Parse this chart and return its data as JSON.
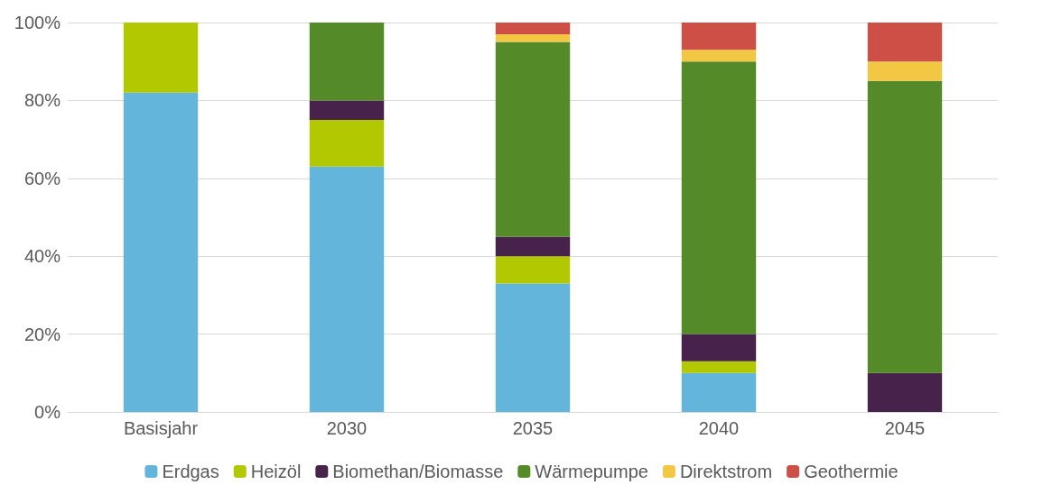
{
  "chart_data": {
    "type": "bar",
    "stacked": true,
    "categories": [
      "Basisjahr",
      "2030",
      "2035",
      "2040",
      "2045"
    ],
    "series": [
      {
        "name": "Erdgas",
        "color": "#64b5dc",
        "values": [
          82,
          63,
          33,
          10,
          0
        ]
      },
      {
        "name": "Heizöl",
        "color": "#b2c800",
        "values": [
          18,
          12,
          7,
          3,
          0
        ]
      },
      {
        "name": "Biomethan/Biomasse",
        "color": "#47234b",
        "values": [
          0,
          5,
          5,
          7,
          10
        ]
      },
      {
        "name": "Wärmepumpe",
        "color": "#548a27",
        "values": [
          0,
          20,
          50,
          70,
          75
        ]
      },
      {
        "name": "Direktstrom",
        "color": "#f2c744",
        "values": [
          0,
          0,
          2,
          3,
          5
        ]
      },
      {
        "name": "Geothermie",
        "color": "#cd4f45",
        "values": [
          0,
          0,
          3,
          7,
          10
        ]
      }
    ],
    "ylim": [
      0,
      100
    ],
    "yticks": [
      {
        "value": 0,
        "label": "0%"
      },
      {
        "value": 20,
        "label": "20%"
      },
      {
        "value": 40,
        "label": "40%"
      },
      {
        "value": 60,
        "label": "60%"
      },
      {
        "value": 80,
        "label": "80%"
      },
      {
        "value": 100,
        "label": "100%"
      }
    ],
    "grid": "y",
    "legend": "bottom"
  }
}
